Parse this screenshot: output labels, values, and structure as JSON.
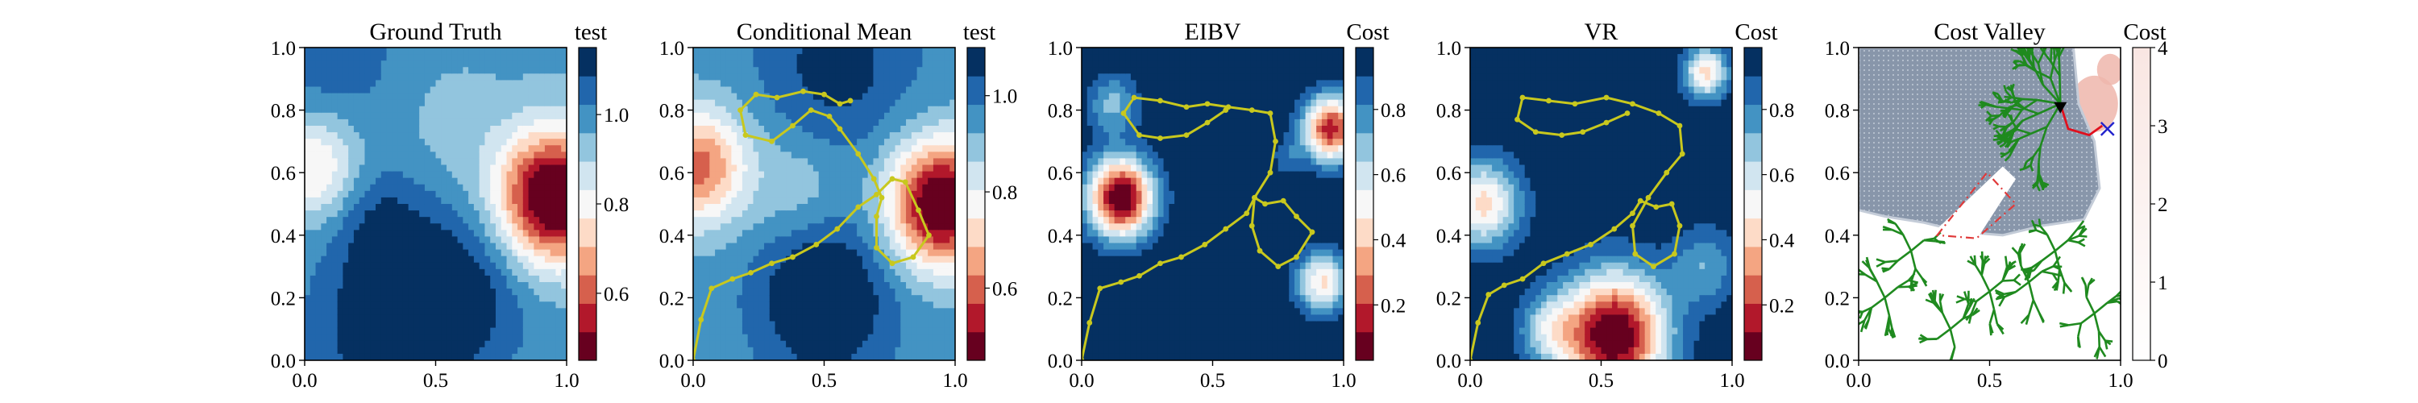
{
  "colors": {
    "rdbu_scale": [
      "#67001f",
      "#b2182b",
      "#d6604d",
      "#f4a582",
      "#fddbc7",
      "#f7f7f7",
      "#d1e5f0",
      "#92c5de",
      "#4393c3",
      "#2166ac",
      "#053061"
    ],
    "path": "#c8c81e",
    "tree": "#1f8a1f",
    "wall": "#8896aa",
    "cost_light": "#f9e6e2",
    "cost_mid": "#eeb6ab",
    "best_path": "#e0101e",
    "poly": "#e03a3a",
    "marker_x": "#2222cc",
    "marker_tri": "#000000"
  },
  "chart_data": [
    {
      "type": "heatmap",
      "title": "Ground Truth",
      "colorbar_title": "test",
      "xlim": [
        0,
        1
      ],
      "ylim": [
        0,
        1
      ],
      "x_ticks": [
        "0.0",
        "0.5",
        "1.0"
      ],
      "y_ticks": [
        "0.0",
        "0.2",
        "0.4",
        "0.6",
        "0.8",
        "1.0"
      ],
      "colorbar_range": [
        0.45,
        1.15
      ],
      "colorbar_ticks": [
        "0.6",
        "0.8",
        "1.0"
      ],
      "colorbar_tick_values": [
        0.6,
        0.8,
        1.0
      ],
      "field": {
        "base": 0.98,
        "bumps": [
          {
            "x": 0.95,
            "y": 0.52,
            "amp": -0.6,
            "sigma": 0.15
          },
          {
            "x": 0.04,
            "y": 0.62,
            "amp": -0.24,
            "sigma": 0.12
          },
          {
            "x": 0.35,
            "y": 0.1,
            "amp": 0.2,
            "sigma": 0.2
          },
          {
            "x": 0.62,
            "y": 0.25,
            "amp": 0.12,
            "sigma": 0.18
          },
          {
            "x": 0.28,
            "y": 0.45,
            "amp": 0.1,
            "sigma": 0.13
          },
          {
            "x": 0.55,
            "y": 0.75,
            "amp": -0.05,
            "sigma": 0.15
          },
          {
            "x": 0.1,
            "y": 0.95,
            "amp": 0.08,
            "sigma": 0.2
          }
        ]
      },
      "paths": []
    },
    {
      "type": "heatmap",
      "title": "Conditional Mean",
      "colorbar_title": "test",
      "xlim": [
        0,
        1
      ],
      "ylim": [
        0,
        1
      ],
      "x_ticks": [
        "0.0",
        "0.5",
        "1.0"
      ],
      "y_ticks": [
        "0.0",
        "0.2",
        "0.4",
        "0.6",
        "0.8",
        "1.0"
      ],
      "colorbar_range": [
        0.45,
        1.1
      ],
      "colorbar_ticks": [
        "0.6",
        "0.8",
        "1.0"
      ],
      "colorbar_tick_values": [
        0.6,
        0.8,
        1.0
      ],
      "field": {
        "base": 0.95,
        "bumps": [
          {
            "x": 0.95,
            "y": 0.5,
            "amp": -0.55,
            "sigma": 0.14
          },
          {
            "x": 0.02,
            "y": 0.62,
            "amp": -0.35,
            "sigma": 0.13
          },
          {
            "x": 0.5,
            "y": 0.2,
            "amp": 0.2,
            "sigma": 0.17
          },
          {
            "x": 0.55,
            "y": 0.95,
            "amp": 0.12,
            "sigma": 0.2
          },
          {
            "x": 0.4,
            "y": 0.55,
            "amp": -0.08,
            "sigma": 0.12
          }
        ]
      },
      "paths": [
        {
          "points": [
            [
              0.0,
              0.0
            ],
            [
              0.03,
              0.13
            ],
            [
              0.07,
              0.23
            ],
            [
              0.15,
              0.26
            ],
            [
              0.22,
              0.28
            ],
            [
              0.3,
              0.31
            ],
            [
              0.38,
              0.33
            ],
            [
              0.47,
              0.37
            ],
            [
              0.55,
              0.42
            ],
            [
              0.63,
              0.49
            ],
            [
              0.7,
              0.53
            ],
            [
              0.76,
              0.58
            ],
            [
              0.81,
              0.57
            ],
            [
              0.86,
              0.48
            ],
            [
              0.9,
              0.4
            ],
            [
              0.84,
              0.33
            ],
            [
              0.76,
              0.31
            ],
            [
              0.7,
              0.36
            ],
            [
              0.7,
              0.46
            ],
            [
              0.72,
              0.52
            ],
            [
              0.69,
              0.58
            ],
            [
              0.63,
              0.66
            ],
            [
              0.56,
              0.74
            ],
            [
              0.52,
              0.78
            ],
            [
              0.45,
              0.8
            ],
            [
              0.38,
              0.75
            ],
            [
              0.3,
              0.7
            ],
            [
              0.2,
              0.72
            ],
            [
              0.18,
              0.8
            ],
            [
              0.24,
              0.85
            ],
            [
              0.32,
              0.84
            ],
            [
              0.42,
              0.86
            ],
            [
              0.5,
              0.85
            ],
            [
              0.56,
              0.82
            ],
            [
              0.6,
              0.83
            ]
          ],
          "color": "#c8c81e"
        }
      ]
    },
    {
      "type": "heatmap",
      "title": "EIBV",
      "colorbar_title": "Cost",
      "xlim": [
        0,
        1
      ],
      "ylim": [
        0,
        1
      ],
      "x_ticks": [
        "0.0",
        "0.5",
        "1.0"
      ],
      "y_ticks": [
        "0.0",
        "0.2",
        "0.4",
        "0.6",
        "0.8",
        "1.0"
      ],
      "colorbar_range": [
        0.03,
        0.99
      ],
      "colorbar_ticks": [
        "0.2",
        "0.4",
        "0.6",
        "0.8"
      ],
      "colorbar_tick_values": [
        0.2,
        0.4,
        0.6,
        0.8
      ],
      "field": {
        "base": 1.0,
        "bumps": [
          {
            "x": 0.15,
            "y": 0.52,
            "amp": -1.0,
            "sigma": 0.09
          },
          {
            "x": 0.95,
            "y": 0.74,
            "amp": -0.85,
            "sigma": 0.075
          },
          {
            "x": 0.92,
            "y": 0.25,
            "amp": -0.55,
            "sigma": 0.07
          },
          {
            "x": 0.12,
            "y": 0.82,
            "amp": -0.3,
            "sigma": 0.07
          },
          {
            "x": 0.78,
            "y": 0.65,
            "amp": -0.15,
            "sigma": 0.04
          }
        ]
      },
      "paths": [
        {
          "points": [
            [
              0.0,
              0.0
            ],
            [
              0.03,
              0.12
            ],
            [
              0.07,
              0.23
            ],
            [
              0.15,
              0.25
            ],
            [
              0.22,
              0.27
            ],
            [
              0.3,
              0.31
            ],
            [
              0.38,
              0.33
            ],
            [
              0.47,
              0.37
            ],
            [
              0.55,
              0.42
            ],
            [
              0.63,
              0.47
            ],
            [
              0.66,
              0.52
            ],
            [
              0.7,
              0.5
            ],
            [
              0.77,
              0.51
            ],
            [
              0.82,
              0.46
            ],
            [
              0.88,
              0.41
            ],
            [
              0.82,
              0.33
            ],
            [
              0.75,
              0.3
            ],
            [
              0.68,
              0.35
            ],
            [
              0.65,
              0.43
            ],
            [
              0.66,
              0.52
            ],
            [
              0.72,
              0.6
            ],
            [
              0.74,
              0.7
            ],
            [
              0.72,
              0.79
            ],
            [
              0.65,
              0.8
            ],
            [
              0.56,
              0.81
            ],
            [
              0.48,
              0.82
            ],
            [
              0.4,
              0.81
            ],
            [
              0.3,
              0.83
            ],
            [
              0.2,
              0.84
            ],
            [
              0.16,
              0.79
            ],
            [
              0.22,
              0.72
            ],
            [
              0.3,
              0.71
            ],
            [
              0.4,
              0.72
            ],
            [
              0.48,
              0.76
            ],
            [
              0.55,
              0.8
            ]
          ],
          "color": "#c8c81e"
        }
      ]
    },
    {
      "type": "heatmap",
      "title": "VR",
      "colorbar_title": "Cost",
      "xlim": [
        0,
        1
      ],
      "ylim": [
        0,
        1
      ],
      "x_ticks": [
        "0.0",
        "0.5",
        "1.0"
      ],
      "y_ticks": [
        "0.0",
        "0.2",
        "0.4",
        "0.6",
        "0.8",
        "1.0"
      ],
      "colorbar_range": [
        0.03,
        0.99
      ],
      "colorbar_ticks": [
        "0.2",
        "0.4",
        "0.6",
        "0.8"
      ],
      "colorbar_tick_values": [
        0.2,
        0.4,
        0.6,
        0.8
      ],
      "field": {
        "base": 0.99,
        "bumps": [
          {
            "x": 0.55,
            "y": 0.08,
            "amp": -1.0,
            "sigma": 0.14
          },
          {
            "x": 0.05,
            "y": 0.5,
            "amp": -0.55,
            "sigma": 0.1
          },
          {
            "x": 0.9,
            "y": 0.92,
            "amp": -0.55,
            "sigma": 0.06
          },
          {
            "x": 0.9,
            "y": 0.3,
            "amp": -0.25,
            "sigma": 0.09
          },
          {
            "x": 0.3,
            "y": 0.1,
            "amp": -0.3,
            "sigma": 0.08
          }
        ]
      },
      "paths": [
        {
          "points": [
            [
              0.0,
              0.0
            ],
            [
              0.03,
              0.12
            ],
            [
              0.07,
              0.21
            ],
            [
              0.13,
              0.24
            ],
            [
              0.2,
              0.26
            ],
            [
              0.28,
              0.31
            ],
            [
              0.37,
              0.34
            ],
            [
              0.46,
              0.37
            ],
            [
              0.55,
              0.42
            ],
            [
              0.62,
              0.47
            ],
            [
              0.65,
              0.51
            ],
            [
              0.71,
              0.49
            ],
            [
              0.77,
              0.5
            ],
            [
              0.8,
              0.43
            ],
            [
              0.78,
              0.34
            ],
            [
              0.7,
              0.3
            ],
            [
              0.63,
              0.34
            ],
            [
              0.62,
              0.43
            ],
            [
              0.68,
              0.52
            ],
            [
              0.75,
              0.6
            ],
            [
              0.81,
              0.66
            ],
            [
              0.8,
              0.75
            ],
            [
              0.72,
              0.79
            ],
            [
              0.62,
              0.82
            ],
            [
              0.52,
              0.84
            ],
            [
              0.4,
              0.82
            ],
            [
              0.3,
              0.83
            ],
            [
              0.2,
              0.84
            ],
            [
              0.18,
              0.77
            ],
            [
              0.25,
              0.73
            ],
            [
              0.35,
              0.72
            ],
            [
              0.43,
              0.73
            ],
            [
              0.52,
              0.76
            ],
            [
              0.6,
              0.79
            ]
          ],
          "color": "#c8c81e"
        }
      ]
    },
    {
      "type": "heatmap",
      "title": "Cost Valley",
      "colorbar_title": "Cost",
      "xlim": [
        0,
        1
      ],
      "ylim": [
        0,
        1
      ],
      "x_ticks": [
        "0.0",
        "0.5",
        "1.0"
      ],
      "y_ticks": [
        "0.0",
        "0.2",
        "0.4",
        "0.6",
        "0.8",
        "1.0"
      ],
      "colorbar_range": [
        0,
        4
      ],
      "colorbar_ticks": [
        "0",
        "1",
        "2",
        "3",
        "4"
      ],
      "colorbar_tick_values": [
        0,
        1,
        2,
        3,
        4
      ],
      "wall_region": [
        [
          0.0,
          1.0
        ],
        [
          0.82,
          1.0
        ],
        [
          0.84,
          0.82
        ],
        [
          0.9,
          0.7
        ],
        [
          0.92,
          0.55
        ],
        [
          0.86,
          0.45
        ],
        [
          0.7,
          0.43
        ],
        [
          0.55,
          0.4
        ],
        [
          0.4,
          0.41
        ],
        [
          0.25,
          0.44
        ],
        [
          0.1,
          0.46
        ],
        [
          0.0,
          0.48
        ]
      ],
      "cost_bumps": [
        {
          "x": 0.9,
          "y": 0.82,
          "r": 0.09
        },
        {
          "x": 0.96,
          "y": 0.93,
          "r": 0.05
        },
        {
          "x": 0.78,
          "y": 0.93,
          "r": 0.04
        }
      ],
      "white_polygon": [
        [
          0.3,
          0.42
        ],
        [
          0.55,
          0.62
        ],
        [
          0.6,
          0.58
        ],
        [
          0.43,
          0.36
        ]
      ],
      "red_polygon": [
        [
          0.3,
          0.4
        ],
        [
          0.49,
          0.6
        ],
        [
          0.6,
          0.5
        ],
        [
          0.45,
          0.39
        ]
      ],
      "tree_root": [
        0.77,
        0.82
      ],
      "best_path": [
        [
          0.77,
          0.82
        ],
        [
          0.8,
          0.74
        ],
        [
          0.88,
          0.72
        ],
        [
          0.93,
          0.75
        ]
      ],
      "end_marker": [
        0.95,
        0.74
      ],
      "start_marker": [
        0.77,
        0.81
      ],
      "paths": []
    }
  ]
}
